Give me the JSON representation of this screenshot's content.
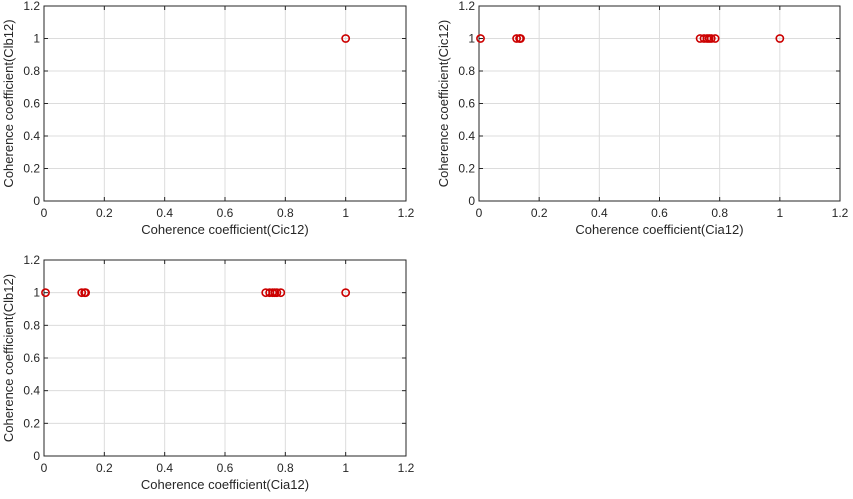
{
  "colors": {
    "marker": "#cc0000",
    "axis": "#262626",
    "grid": "#dcdcdc"
  },
  "chart_data": [
    {
      "type": "scatter",
      "title": "",
      "xlabel": "Coherence coefficient(Cic12)",
      "ylabel": "Coherence coefficient(Clb12)",
      "xlim": [
        0,
        1.2
      ],
      "ylim": [
        0,
        1.2
      ],
      "xticks": [
        "0",
        "0.2",
        "0.4",
        "0.6",
        "0.8",
        "1",
        "1.2"
      ],
      "yticks": [
        "0",
        "0.2",
        "0.4",
        "0.6",
        "0.8",
        "1",
        "1.2"
      ],
      "grid": true,
      "marker": "circle",
      "series": [
        {
          "x": [
            1.0
          ],
          "y": [
            1.0
          ]
        }
      ]
    },
    {
      "type": "scatter",
      "title": "",
      "xlabel": "Coherence coefficient(Cia12)",
      "ylabel": "Coherence coefficient(Cic12)",
      "xlim": [
        0,
        1.2
      ],
      "ylim": [
        0,
        1.2
      ],
      "xticks": [
        "0",
        "0.2",
        "0.4",
        "0.6",
        "0.8",
        "1",
        "1.2"
      ],
      "yticks": [
        "0",
        "0.2",
        "0.4",
        "0.6",
        "0.8",
        "1",
        "1.2"
      ],
      "grid": true,
      "marker": "circle",
      "series": [
        {
          "x": [
            0.005,
            0.125,
            0.135,
            0.138,
            0.735,
            0.748,
            0.758,
            0.765,
            0.772,
            0.785,
            1.0
          ],
          "y": [
            1,
            1,
            1,
            1,
            1,
            1,
            1,
            1,
            1,
            1,
            1
          ]
        }
      ]
    },
    {
      "type": "scatter",
      "title": "",
      "xlabel": "Coherence coefficient(Cia12)",
      "ylabel": "Coherence coefficient(Clb12)",
      "xlim": [
        0,
        1.2
      ],
      "ylim": [
        0,
        1.2
      ],
      "xticks": [
        "0",
        "0.2",
        "0.4",
        "0.6",
        "0.8",
        "1",
        "1.2"
      ],
      "yticks": [
        "0",
        "0.2",
        "0.4",
        "0.6",
        "0.8",
        "1",
        "1.2"
      ],
      "grid": true,
      "marker": "circle",
      "series": [
        {
          "x": [
            0.005,
            0.125,
            0.135,
            0.138,
            0.735,
            0.748,
            0.758,
            0.765,
            0.772,
            0.785,
            1.0
          ],
          "y": [
            1,
            1,
            1,
            1,
            1,
            1,
            1,
            1,
            1,
            1,
            1
          ]
        }
      ]
    }
  ]
}
